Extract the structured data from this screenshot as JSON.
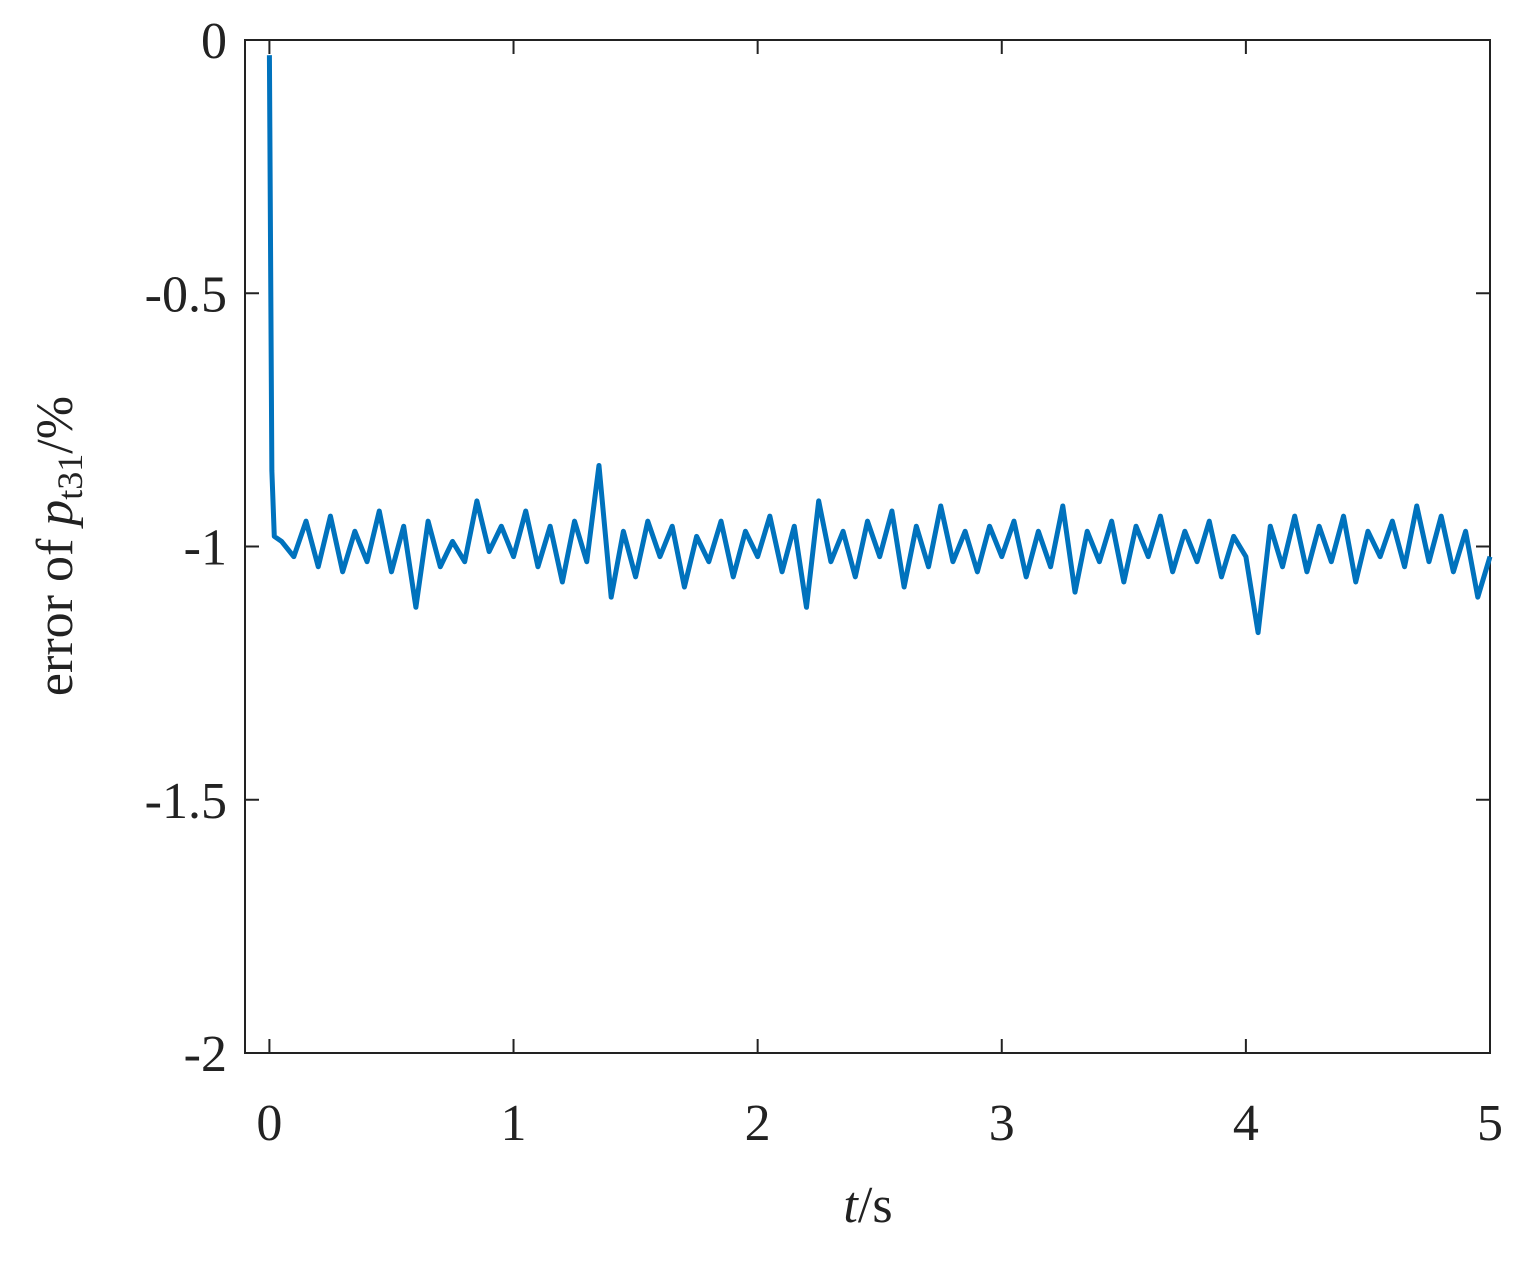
{
  "chart_data": {
    "type": "line",
    "xlabel": {
      "variable": "t",
      "unit": "/s"
    },
    "ylabel": {
      "prefix": "error of ",
      "variable": "p",
      "subscript": "t31",
      "unit": "/%"
    },
    "color": "#0072bd",
    "xlim": [
      -0.1,
      5
    ],
    "xticks": [
      0,
      1,
      2,
      3,
      4,
      5
    ],
    "ylim": [
      -2,
      0
    ],
    "yticks": [
      -2,
      -1.5,
      -1,
      -0.5,
      0
    ],
    "grid": false,
    "x": [
      0,
      0.01,
      0.02,
      0.05,
      0.1,
      0.15,
      0.2,
      0.25,
      0.3,
      0.35,
      0.4,
      0.45,
      0.5,
      0.55,
      0.6,
      0.65,
      0.7,
      0.75,
      0.8,
      0.85,
      0.9,
      0.95,
      1.0,
      1.05,
      1.1,
      1.15,
      1.2,
      1.25,
      1.3,
      1.35,
      1.4,
      1.45,
      1.5,
      1.55,
      1.6,
      1.65,
      1.7,
      1.75,
      1.8,
      1.85,
      1.9,
      1.95,
      2.0,
      2.05,
      2.1,
      2.15,
      2.2,
      2.25,
      2.3,
      2.35,
      2.4,
      2.45,
      2.5,
      2.55,
      2.6,
      2.65,
      2.7,
      2.75,
      2.8,
      2.85,
      2.9,
      2.95,
      3.0,
      3.05,
      3.1,
      3.15,
      3.2,
      3.25,
      3.3,
      3.35,
      3.4,
      3.45,
      3.5,
      3.55,
      3.6,
      3.65,
      3.7,
      3.75,
      3.8,
      3.85,
      3.9,
      3.95,
      4.0,
      4.05,
      4.1,
      4.15,
      4.2,
      4.25,
      4.3,
      4.35,
      4.4,
      4.45,
      4.5,
      4.55,
      4.6,
      4.65,
      4.7,
      4.75,
      4.8,
      4.85,
      4.9,
      4.95,
      5.0
    ],
    "values": [
      -0.03,
      -0.85,
      -0.98,
      -0.99,
      -1.02,
      -0.95,
      -1.04,
      -0.94,
      -1.05,
      -0.97,
      -1.03,
      -0.93,
      -1.05,
      -0.96,
      -1.12,
      -0.95,
      -1.04,
      -0.99,
      -1.03,
      -0.91,
      -1.01,
      -0.96,
      -1.02,
      -0.93,
      -1.04,
      -0.96,
      -1.07,
      -0.95,
      -1.03,
      -0.84,
      -1.1,
      -0.97,
      -1.06,
      -0.95,
      -1.02,
      -0.96,
      -1.08,
      -0.98,
      -1.03,
      -0.95,
      -1.06,
      -0.97,
      -1.02,
      -0.94,
      -1.05,
      -0.96,
      -1.12,
      -0.91,
      -1.03,
      -0.97,
      -1.06,
      -0.95,
      -1.02,
      -0.93,
      -1.08,
      -0.96,
      -1.04,
      -0.92,
      -1.03,
      -0.97,
      -1.05,
      -0.96,
      -1.02,
      -0.95,
      -1.06,
      -0.97,
      -1.04,
      -0.92,
      -1.09,
      -0.97,
      -1.03,
      -0.95,
      -1.07,
      -0.96,
      -1.02,
      -0.94,
      -1.05,
      -0.97,
      -1.03,
      -0.95,
      -1.06,
      -0.98,
      -1.02,
      -1.17,
      -0.96,
      -1.04,
      -0.94,
      -1.05,
      -0.96,
      -1.03,
      -0.94,
      -1.07,
      -0.97,
      -1.02,
      -0.95,
      -1.04,
      -0.92,
      -1.03,
      -0.94,
      -1.05,
      -0.97,
      -1.1,
      -1.02
    ]
  }
}
